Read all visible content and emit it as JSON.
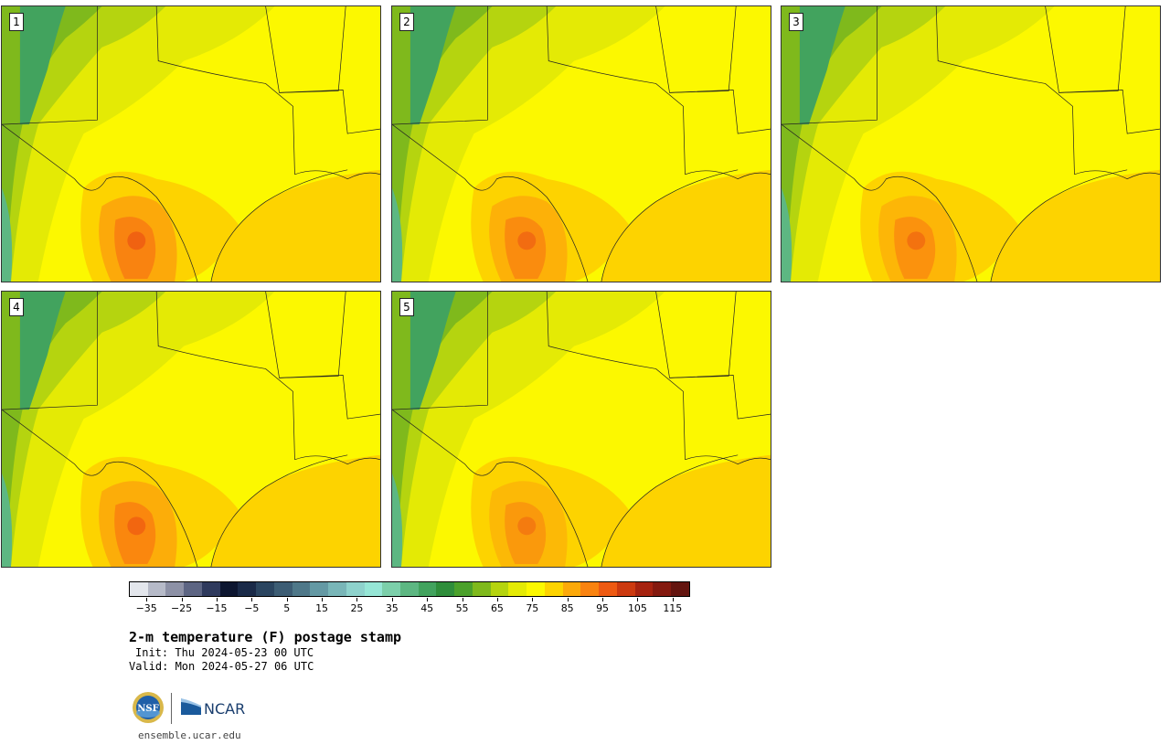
{
  "panels": [
    {
      "label": "1",
      "hot_level": 1.0
    },
    {
      "label": "2",
      "hot_level": 0.8
    },
    {
      "label": "3",
      "hot_level": 0.7
    },
    {
      "label": "4",
      "hot_level": 0.9
    },
    {
      "label": "5",
      "hot_level": 0.6
    }
  ],
  "colorbar": {
    "colors": [
      "#e3e6ec",
      "#b6bac8",
      "#8d91a6",
      "#5d6583",
      "#2f3a5d",
      "#0d1630",
      "#1a2a48",
      "#2b4560",
      "#3d5d74",
      "#4f7889",
      "#6499a4",
      "#79b6b8",
      "#8ed2cc",
      "#96e6d6",
      "#7ccfaa",
      "#5db782",
      "#42a35e",
      "#2f8e3b",
      "#4ba12b",
      "#7fb91c",
      "#b5d40f",
      "#e4ea05",
      "#fcf800",
      "#fdd300",
      "#fca90a",
      "#f98310",
      "#ee5a12",
      "#cc3a10",
      "#a62310",
      "#841a10",
      "#641510"
    ],
    "tick_labels": [
      "−35",
      "−25",
      "−15",
      "−5",
      "5",
      "15",
      "25",
      "35",
      "45",
      "55",
      "65",
      "75",
      "85",
      "95",
      "105",
      "115"
    ],
    "min": -40,
    "max": 120
  },
  "title": "2-m temperature (F) postage stamp",
  "init": "Init: Thu 2024-05-23 00 UTC",
  "valid": "Valid: Mon 2024-05-27 06 UTC",
  "logos": {
    "nsf": "NSF",
    "ncar": "NCAR"
  },
  "site": "ensemble.ucar.edu"
}
